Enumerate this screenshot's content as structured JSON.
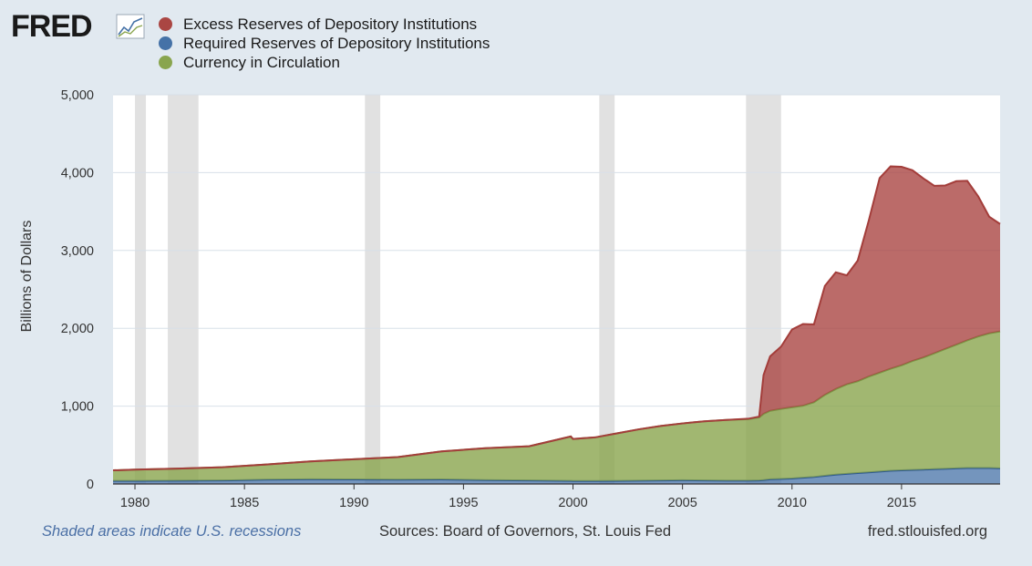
{
  "header": {
    "logo_text": "FRED",
    "logo_icon": "fred-line-chart-icon"
  },
  "legend": [
    {
      "label": "Excess Reserves of Depository Institutions",
      "color": "#aa4643"
    },
    {
      "label": "Required Reserves of Depository Institutions",
      "color": "#4572a7"
    },
    {
      "label": "Currency in Circulation",
      "color": "#89a54e"
    }
  ],
  "footer": {
    "recessions_note": "Shaded areas indicate U.S. recessions",
    "sources": "Sources: Board of Governors, St. Louis Fed",
    "site": "fred.stlouisfed.org"
  },
  "chart_data": {
    "type": "area",
    "stacked": true,
    "ylabel": "Billions of Dollars",
    "xlim": [
      1979.0,
      2019.5
    ],
    "ylim": [
      0,
      5000
    ],
    "y_ticks": [
      "0",
      "1,000",
      "2,000",
      "3,000",
      "4,000",
      "5,000"
    ],
    "x_ticks": [
      "1980",
      "1985",
      "1990",
      "1995",
      "2000",
      "2005",
      "2010",
      "2015"
    ],
    "recessions": [
      [
        1980.0,
        1980.5
      ],
      [
        1981.5,
        1982.9
      ],
      [
        1990.5,
        1991.2
      ],
      [
        2001.2,
        2001.9
      ],
      [
        2007.9,
        2009.5
      ]
    ],
    "x": [
      1979,
      1980,
      1982,
      1984,
      1986,
      1988,
      1990,
      1992,
      1994,
      1996,
      1998,
      1999.9,
      2000,
      2001,
      2002,
      2003,
      2004,
      2005,
      2006,
      2007,
      2008,
      2008.5,
      2008.7,
      2009,
      2009.5,
      2010,
      2010.5,
      2011,
      2011.5,
      2012,
      2012.5,
      2013,
      2013.5,
      2014,
      2014.5,
      2015,
      2015.5,
      2016,
      2016.5,
      2017,
      2017.5,
      2018,
      2018.5,
      2019,
      2019.5
    ],
    "series": [
      {
        "name": "Required Reserves of Depository Institutions",
        "values": [
          40,
          40,
          42,
          45,
          55,
          60,
          58,
          55,
          58,
          50,
          45,
          40,
          38,
          38,
          40,
          42,
          45,
          48,
          45,
          43,
          43,
          45,
          50,
          60,
          65,
          70,
          80,
          90,
          105,
          120,
          130,
          140,
          150,
          160,
          170,
          175,
          180,
          185,
          190,
          195,
          200,
          205,
          205,
          205,
          200
        ]
      },
      {
        "name": "Currency in Circulation",
        "values": [
          135,
          145,
          155,
          170,
          195,
          230,
          260,
          290,
          360,
          410,
          440,
          570,
          540,
          560,
          610,
          660,
          700,
          730,
          760,
          780,
          790,
          810,
          850,
          880,
          900,
          915,
          925,
          960,
          1040,
          1100,
          1150,
          1180,
          1230,
          1270,
          1310,
          1350,
          1400,
          1440,
          1490,
          1540,
          1590,
          1640,
          1690,
          1730,
          1760
        ]
      },
      {
        "name": "Excess Reserves of Depository Institutions",
        "values": [
          0,
          0,
          0,
          0,
          0,
          0,
          0,
          0,
          0,
          0,
          0,
          0,
          0,
          0,
          0,
          0,
          0,
          0,
          0,
          0,
          5,
          10,
          500,
          700,
          800,
          1000,
          1050,
          1000,
          1400,
          1500,
          1400,
          1550,
          2000,
          2500,
          2600,
          2550,
          2450,
          2300,
          2150,
          2100,
          2100,
          2050,
          1800,
          1500,
          1380
        ]
      }
    ]
  }
}
